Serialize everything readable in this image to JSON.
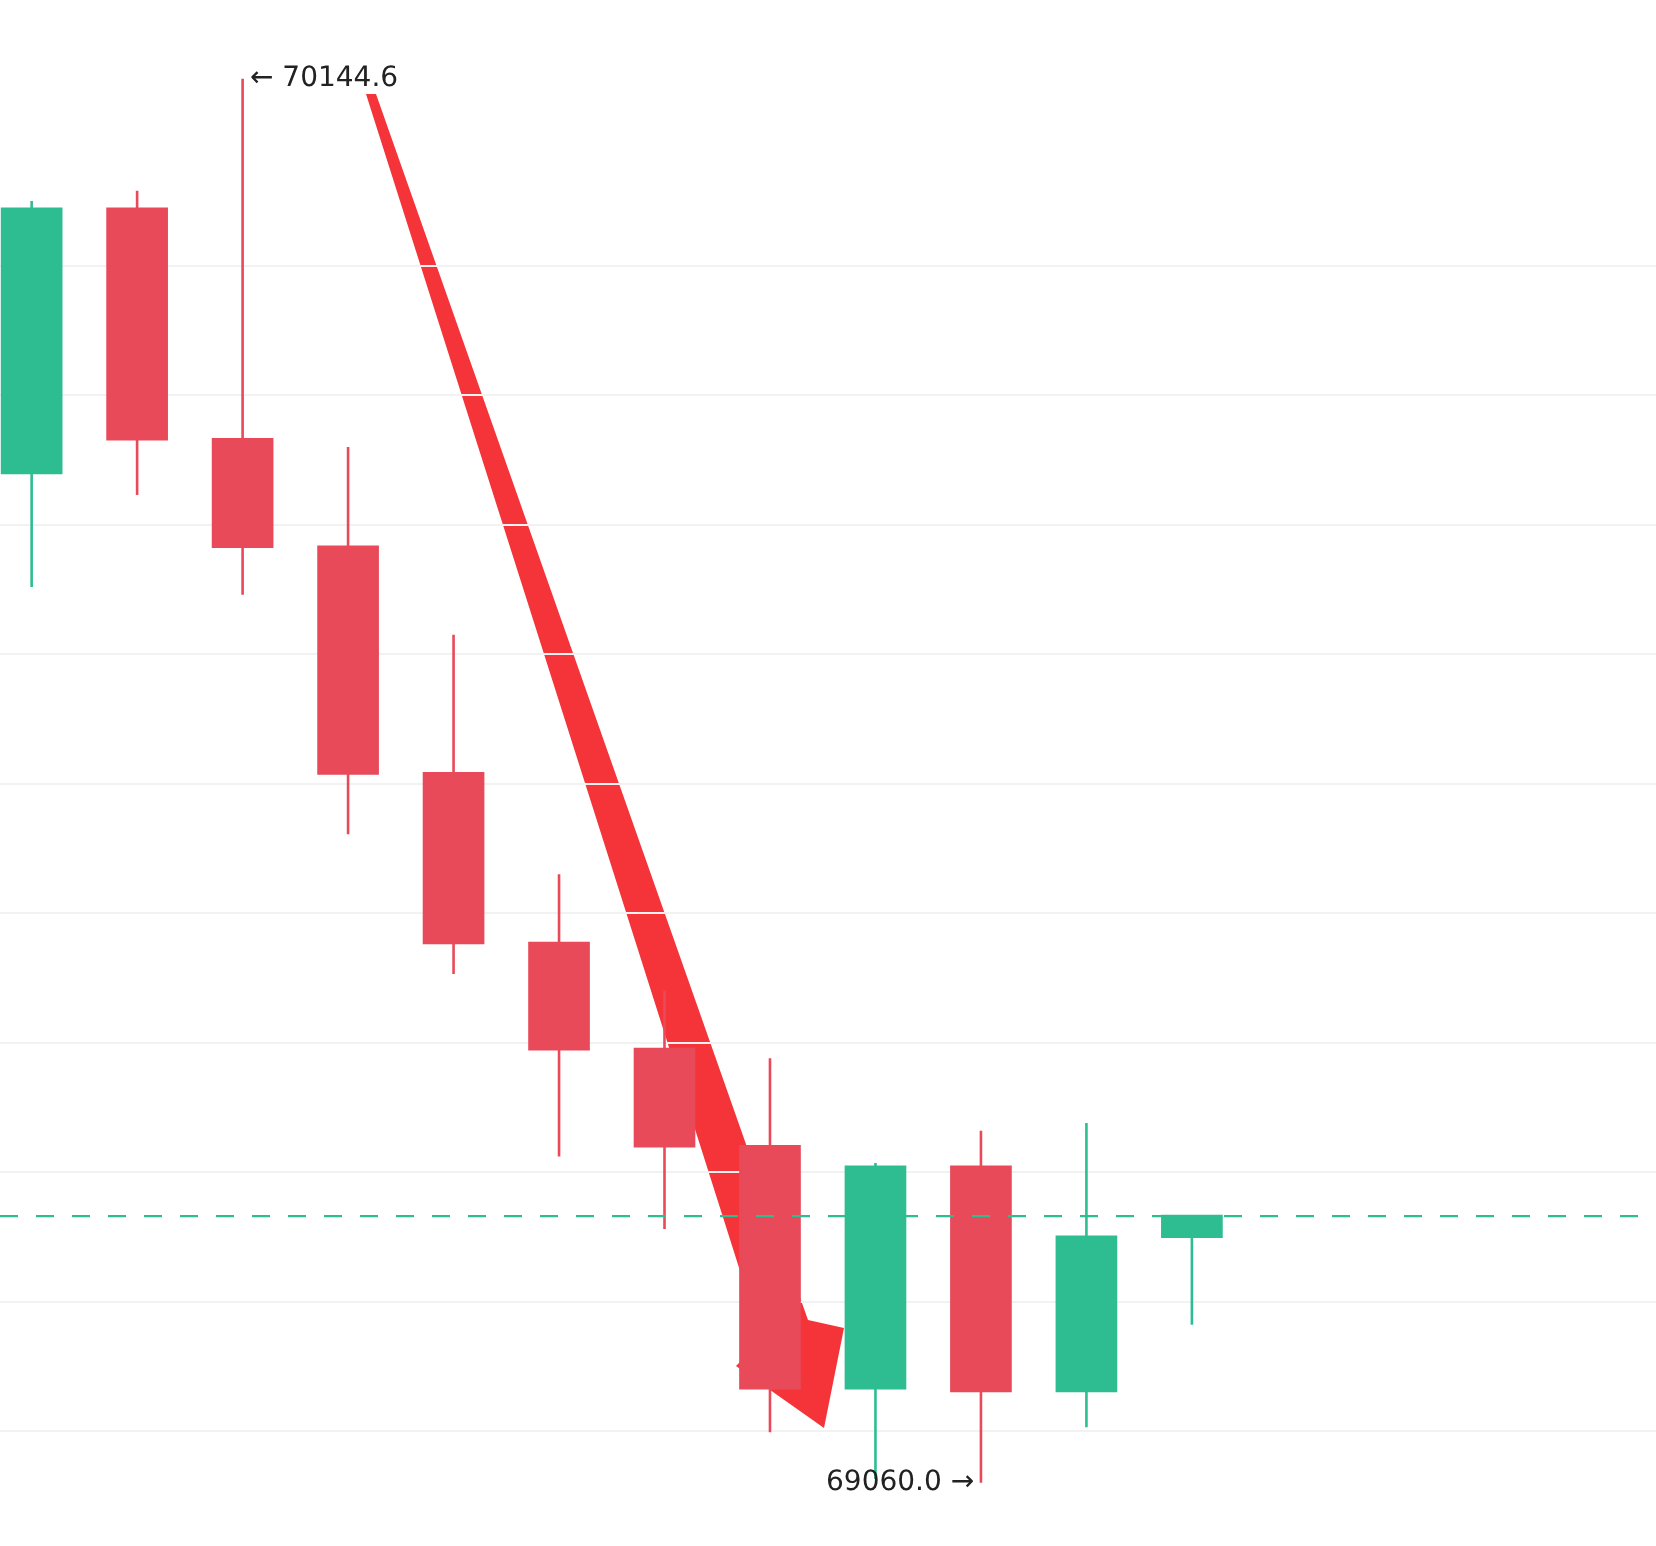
{
  "chart_data": {
    "type": "candlestick",
    "categories": [
      null,
      null,
      null,
      null,
      null,
      null,
      null,
      null,
      null,
      null,
      null,
      null
    ],
    "ohlc": [
      [
        69840,
        70050,
        69752,
        70044
      ],
      [
        70044,
        70058,
        69823,
        69866
      ],
      [
        69866,
        70144.6,
        69746,
        69783
      ],
      [
        69783,
        69860,
        69561,
        69608
      ],
      [
        69608,
        69715,
        69453,
        69477
      ],
      [
        69477,
        69530,
        69312,
        69395
      ],
      [
        69395,
        69440,
        69256,
        69320
      ],
      [
        69320,
        69388,
        69099,
        69133
      ],
      [
        69133,
        69307,
        69063,
        69304
      ],
      [
        69304,
        69332,
        69060,
        69131
      ],
      [
        69131,
        69338,
        69103,
        69250
      ],
      [
        69250,
        69266,
        69182,
        69266
      ]
    ],
    "colors": [
      "#2ebd91",
      "#e84a5a",
      "#e84a5a",
      "#e84a5a",
      "#e84a5a",
      "#e84a5a",
      "#e84a5a",
      "#e84a5a",
      "#2ebd91",
      "#e84a5a",
      "#2ebd91",
      "#2ebd91"
    ],
    "yticks": [
      {
        "value": 69100,
        "label": null
      },
      {
        "value": 69200,
        "label": null
      },
      {
        "value": 69300,
        "label": null
      },
      {
        "value": 69400,
        "label": null
      },
      {
        "value": 69500,
        "label": null
      },
      {
        "value": 69600,
        "label": null
      },
      {
        "value": 69700,
        "label": null
      },
      {
        "value": 69800,
        "label": null
      },
      {
        "value": 69900,
        "label": null
      },
      {
        "value": 70000,
        "label": null
      }
    ],
    "grid": "y",
    "ref_lines": [
      {
        "axis": "y",
        "value": 69266,
        "color": "#2ebd91",
        "line_style": "dashed"
      }
    ],
    "annotations": [
      "← 70144.6",
      "69060.0 →"
    ]
  }
}
